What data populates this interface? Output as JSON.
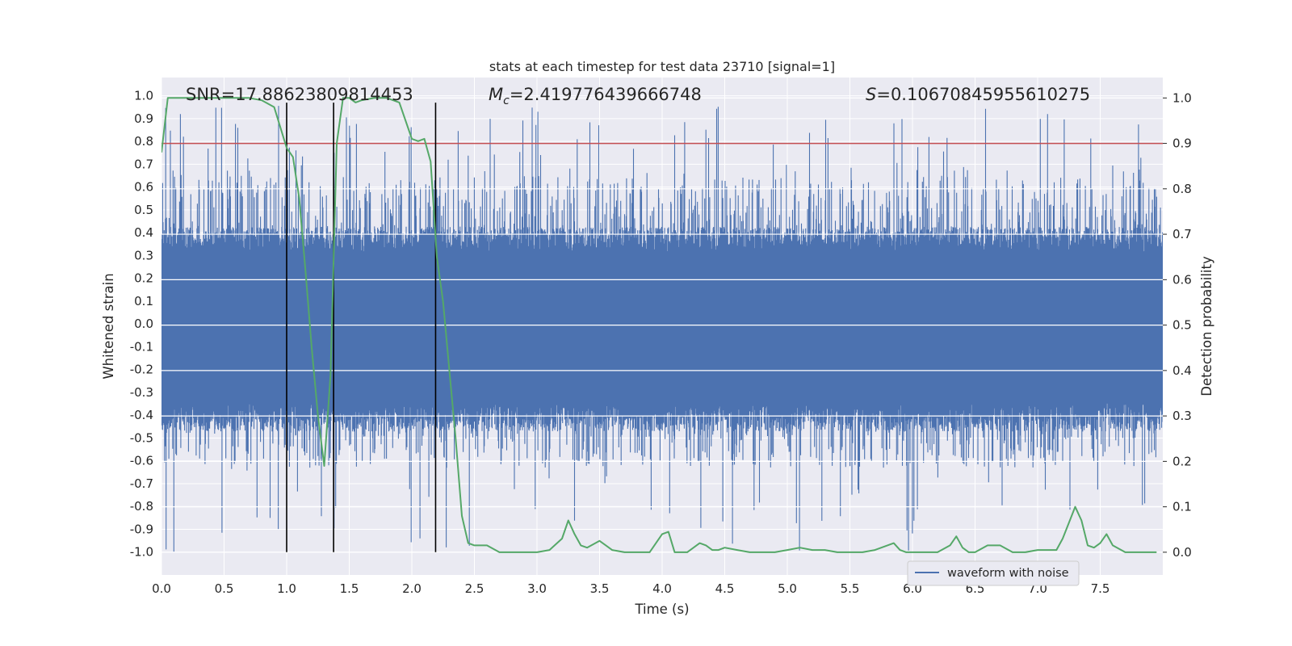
{
  "chart_data": {
    "type": "line",
    "title": "stats at each timestep for test data 23710 [signal=1]",
    "xlabel": "Time (s)",
    "ylabel_left": "Whitened strain",
    "ylabel_right": "Detection probability",
    "xlim": [
      0,
      8
    ],
    "ylim_left": [
      -1.1,
      1.08
    ],
    "ylim_right": [
      -0.05,
      1.045
    ],
    "x_ticks": [
      "0.0",
      "0.5",
      "1.0",
      "1.5",
      "2.0",
      "2.5",
      "3.0",
      "3.5",
      "4.0",
      "4.5",
      "5.0",
      "5.5",
      "6.0",
      "6.5",
      "7.0",
      "7.5"
    ],
    "y_left_ticks": [
      "1.0",
      "0.9",
      "0.8",
      "0.7",
      "0.6",
      "0.5",
      "0.4",
      "0.3",
      "0.2",
      "0.1",
      "0.0",
      "-0.1",
      "-0.2",
      "-0.3",
      "-0.4",
      "-0.5",
      "-0.6",
      "-0.7",
      "-0.8",
      "-0.9",
      "-1.0"
    ],
    "y_right_ticks": [
      "1.0",
      "0.9",
      "0.8",
      "0.7",
      "0.6",
      "0.5",
      "0.4",
      "0.3",
      "0.2",
      "0.1",
      "0.0"
    ],
    "annotations": {
      "snr": "SNR=17.88623809814453",
      "mc": "=2.419776439666748",
      "mc_symbol": "M",
      "mc_subscript": "c",
      "s": "=0.10670845955610275",
      "s_symbol": "S"
    },
    "threshold": 0.9,
    "vertical_lines_s": [
      1.0,
      1.375,
      2.19
    ],
    "vertical_line_range_left": [
      -1.0,
      0.97
    ],
    "legend": [
      "waveform with noise"
    ],
    "colors": {
      "waveform": "#4c72b0",
      "probability": "#55a868",
      "threshold": "#c44e52",
      "vlines": "#000000",
      "background": "#eaeaf2"
    },
    "waveform_envelope": {
      "description_time_s": [
        0,
        8
      ],
      "dense_band_upper": 0.37,
      "dense_band_lower": -0.41,
      "max_peak": 0.96,
      "min_peak": -1.0
    },
    "detection_probability": {
      "t": [
        0.0,
        0.05,
        0.1,
        0.2,
        0.3,
        0.4,
        0.5,
        0.6,
        0.7,
        0.8,
        0.9,
        1.0,
        1.05,
        1.1,
        1.15,
        1.2,
        1.25,
        1.3,
        1.35,
        1.4,
        1.45,
        1.5,
        1.55,
        1.6,
        1.7,
        1.8,
        1.9,
        2.0,
        2.05,
        2.1,
        2.15,
        2.2,
        2.25,
        2.3,
        2.35,
        2.4,
        2.45,
        2.5,
        2.55,
        2.6,
        2.7,
        2.8,
        2.9,
        3.0,
        3.1,
        3.2,
        3.25,
        3.3,
        3.35,
        3.4,
        3.5,
        3.55,
        3.6,
        3.7,
        3.8,
        3.9,
        4.0,
        4.05,
        4.1,
        4.15,
        4.2,
        4.3,
        4.35,
        4.4,
        4.45,
        4.5,
        4.6,
        4.7,
        4.8,
        4.9,
        5.0,
        5.1,
        5.2,
        5.3,
        5.4,
        5.5,
        5.6,
        5.7,
        5.8,
        5.85,
        5.9,
        5.95,
        6.0,
        6.1,
        6.2,
        6.3,
        6.35,
        6.4,
        6.45,
        6.5,
        6.6,
        6.7,
        6.8,
        6.85,
        6.9,
        7.0,
        7.1,
        7.15,
        7.2,
        7.25,
        7.3,
        7.35,
        7.4,
        7.45,
        7.5,
        7.55,
        7.6,
        7.7,
        7.8,
        7.9,
        7.95
      ],
      "p": [
        0.88,
        1.0,
        1.0,
        1.0,
        1.0,
        1.0,
        1.0,
        1.0,
        1.0,
        0.995,
        0.98,
        0.89,
        0.87,
        0.78,
        0.62,
        0.45,
        0.3,
        0.19,
        0.39,
        0.9,
        1.0,
        1.0,
        0.99,
        0.995,
        1.0,
        1.0,
        0.99,
        0.91,
        0.905,
        0.91,
        0.86,
        0.65,
        0.55,
        0.4,
        0.25,
        0.08,
        0.02,
        0.015,
        0.015,
        0.015,
        0.0,
        0.0,
        0.0,
        0.0,
        0.005,
        0.03,
        0.07,
        0.04,
        0.015,
        0.01,
        0.025,
        0.015,
        0.005,
        0.0,
        0.0,
        0.0,
        0.04,
        0.045,
        0.0,
        0.0,
        0.0,
        0.02,
        0.015,
        0.005,
        0.005,
        0.01,
        0.005,
        0.0,
        0.0,
        0.0,
        0.005,
        0.01,
        0.005,
        0.005,
        0.0,
        0.0,
        0.0,
        0.005,
        0.015,
        0.02,
        0.005,
        0.0,
        0.0,
        0.0,
        0.0,
        0.015,
        0.035,
        0.01,
        0.0,
        0.0,
        0.015,
        0.015,
        0.0,
        0.0,
        0.0,
        0.005,
        0.005,
        0.005,
        0.03,
        0.065,
        0.1,
        0.07,
        0.015,
        0.01,
        0.02,
        0.04,
        0.015,
        0.0,
        0.0,
        0.0,
        0.0
      ]
    }
  }
}
